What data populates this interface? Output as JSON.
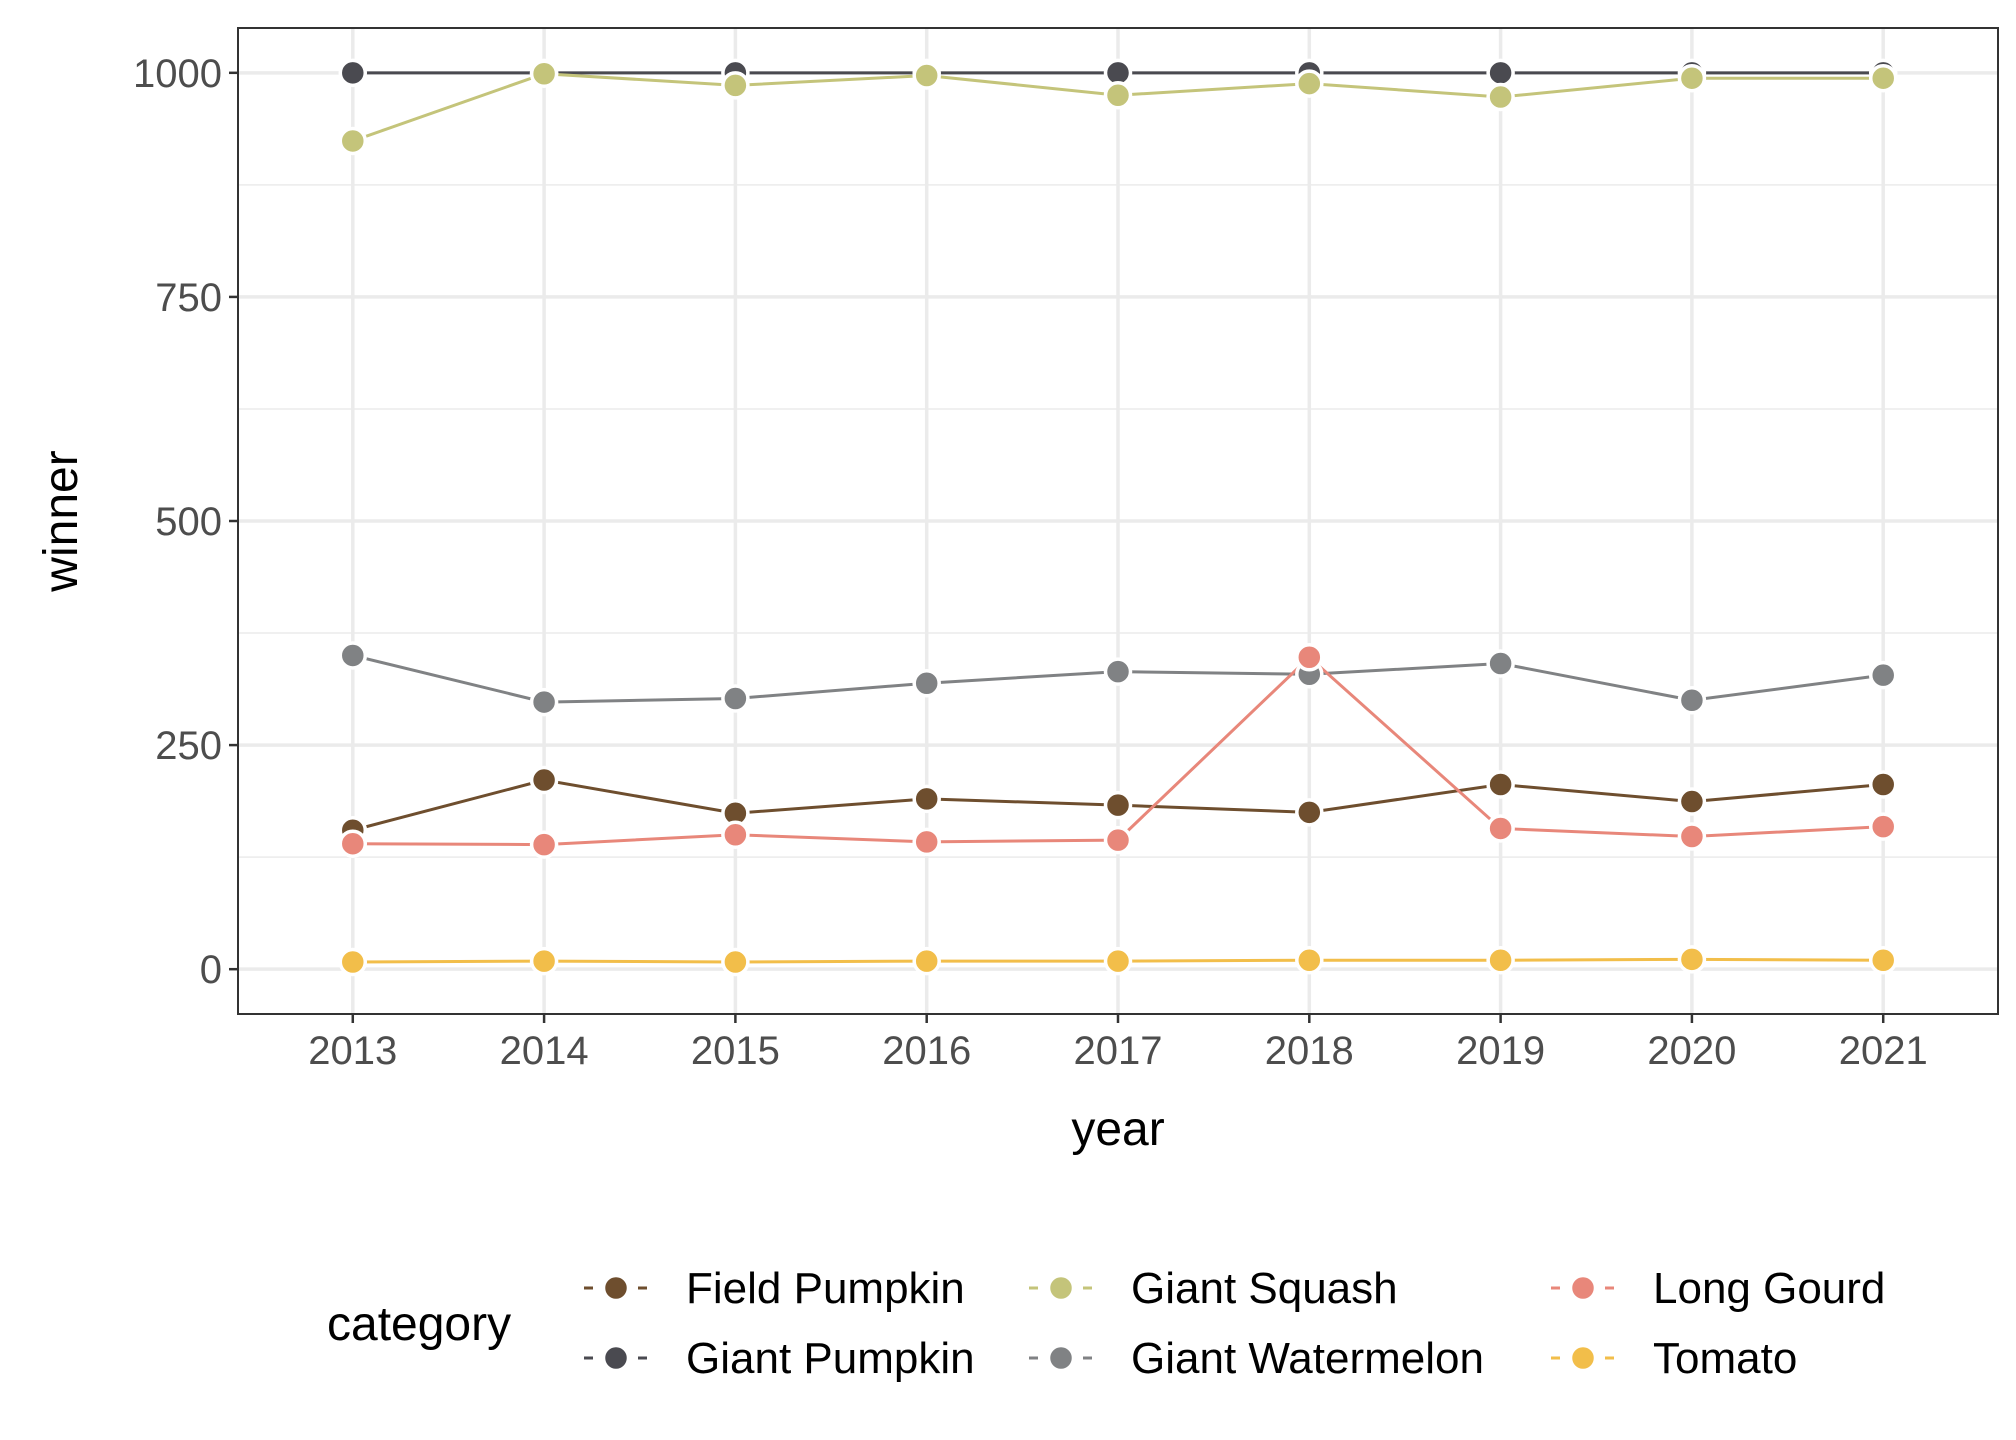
{
  "chart_data": {
    "type": "line",
    "xlabel": "year",
    "ylabel": "winner",
    "x": [
      2013,
      2014,
      2015,
      2016,
      2017,
      2018,
      2019,
      2020,
      2021
    ],
    "xlim": [
      2012.4,
      2021.6
    ],
    "ylim": [
      -50,
      1050
    ],
    "y_ticks": [
      0,
      250,
      500,
      750,
      1000
    ],
    "y_ticks_labels": [
      "0",
      "250",
      "500",
      "750",
      "1000"
    ],
    "x_tick_labels": [
      "2013",
      "2014",
      "2015",
      "2016",
      "2017",
      "2018",
      "2019",
      "2020",
      "2021"
    ],
    "grid": true,
    "legend": {
      "title": "category",
      "position": "bottom"
    },
    "series": [
      {
        "name": "Field Pumpkin",
        "color": "#6e4e2e",
        "values": [
          155,
          211,
          174,
          190,
          183,
          175,
          206,
          187,
          206
        ]
      },
      {
        "name": "Giant Pumpkin",
        "color": "#4a4a50",
        "values": [
          1000,
          1000,
          1000,
          1000,
          1000,
          1000,
          1000,
          1000,
          1000
        ]
      },
      {
        "name": "Giant Squash",
        "color": "#c4c47a",
        "values": [
          924,
          999,
          986,
          997,
          975,
          988,
          973,
          994,
          994
        ]
      },
      {
        "name": "Giant Watermelon",
        "color": "#808284",
        "values": [
          350,
          298,
          302,
          319,
          332,
          329,
          341,
          300,
          328
        ]
      },
      {
        "name": "Long Gourd",
        "color": "#e8877a",
        "values": [
          140,
          139,
          150,
          142,
          144,
          348,
          157,
          148,
          159
        ]
      },
      {
        "name": "Tomato",
        "color": "#f2be4a",
        "values": [
          8,
          9,
          8,
          9,
          9,
          10,
          10,
          11,
          10
        ]
      }
    ]
  }
}
